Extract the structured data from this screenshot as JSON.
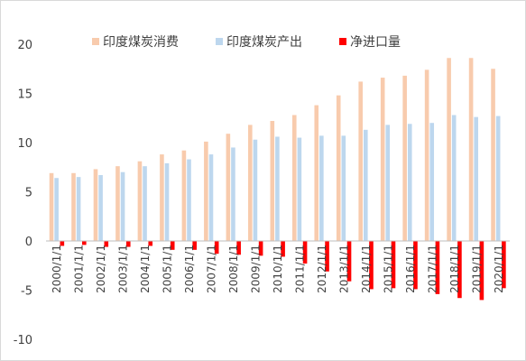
{
  "chart_data": {
    "type": "bar",
    "title": "",
    "xlabel": "",
    "ylabel": "",
    "ylim": [
      -10,
      20
    ],
    "yticks": [
      -10,
      -5,
      0,
      5,
      10,
      15,
      20
    ],
    "legend_position": "top",
    "grid": false,
    "categories": [
      "2000/1/1",
      "2001/1/1",
      "2002/1/1",
      "2003/1/1",
      "2004/1/1",
      "2005/1/1",
      "2006/1/1",
      "2007/1/1",
      "2008/1/1",
      "2009/1/1",
      "2010/1/1",
      "2011/1/1",
      "2012/1/1",
      "2013/1/1",
      "2014/1/1",
      "2015/1/1",
      "2016/1/1",
      "2017/1/1",
      "2018/1/1",
      "2019/1/1",
      "2020/1/1"
    ],
    "series": [
      {
        "name": "印度煤炭消费",
        "color": "#f8cbad",
        "values": [
          6.9,
          6.9,
          7.3,
          7.6,
          8.1,
          8.8,
          9.2,
          10.1,
          10.9,
          11.8,
          12.2,
          12.8,
          13.8,
          14.8,
          16.2,
          16.6,
          16.8,
          17.4,
          18.6,
          18.6,
          17.5
        ]
      },
      {
        "name": "印度煤炭产出",
        "color": "#bdd7ee",
        "values": [
          6.4,
          6.5,
          6.7,
          7.0,
          7.6,
          7.9,
          8.3,
          8.8,
          9.5,
          10.3,
          10.6,
          10.5,
          10.7,
          10.7,
          11.3,
          11.8,
          11.9,
          12.0,
          12.8,
          12.6,
          12.7
        ]
      },
      {
        "name": "净进口量",
        "color": "#ff0000",
        "values": [
          -0.5,
          -0.4,
          -0.6,
          -0.6,
          -0.5,
          -0.9,
          -0.9,
          -1.3,
          -1.4,
          -1.5,
          -1.6,
          -2.3,
          -3.1,
          -4.1,
          -4.9,
          -4.8,
          -4.9,
          -5.4,
          -5.8,
          -6.0,
          -4.8
        ]
      }
    ]
  }
}
